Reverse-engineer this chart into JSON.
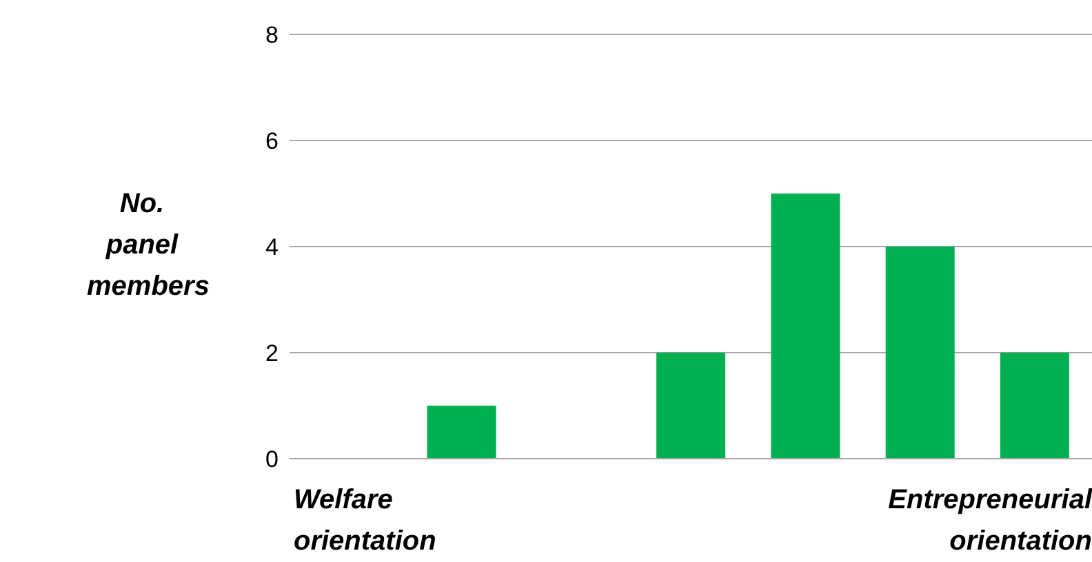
{
  "chart_data": {
    "type": "bar",
    "ylabel": "No. panel members",
    "categories": [
      null,
      null,
      null,
      null,
      null,
      null,
      null
    ],
    "values": [
      0,
      1,
      0,
      2,
      5,
      4,
      2
    ],
    "color": "#00b050",
    "ylim": [
      0,
      8
    ],
    "yticks": [
      0,
      2,
      4,
      6,
      8
    ],
    "grid": "y",
    "annotations": [
      "Welfare orientation",
      "Entrepreneurial orientation"
    ]
  }
}
